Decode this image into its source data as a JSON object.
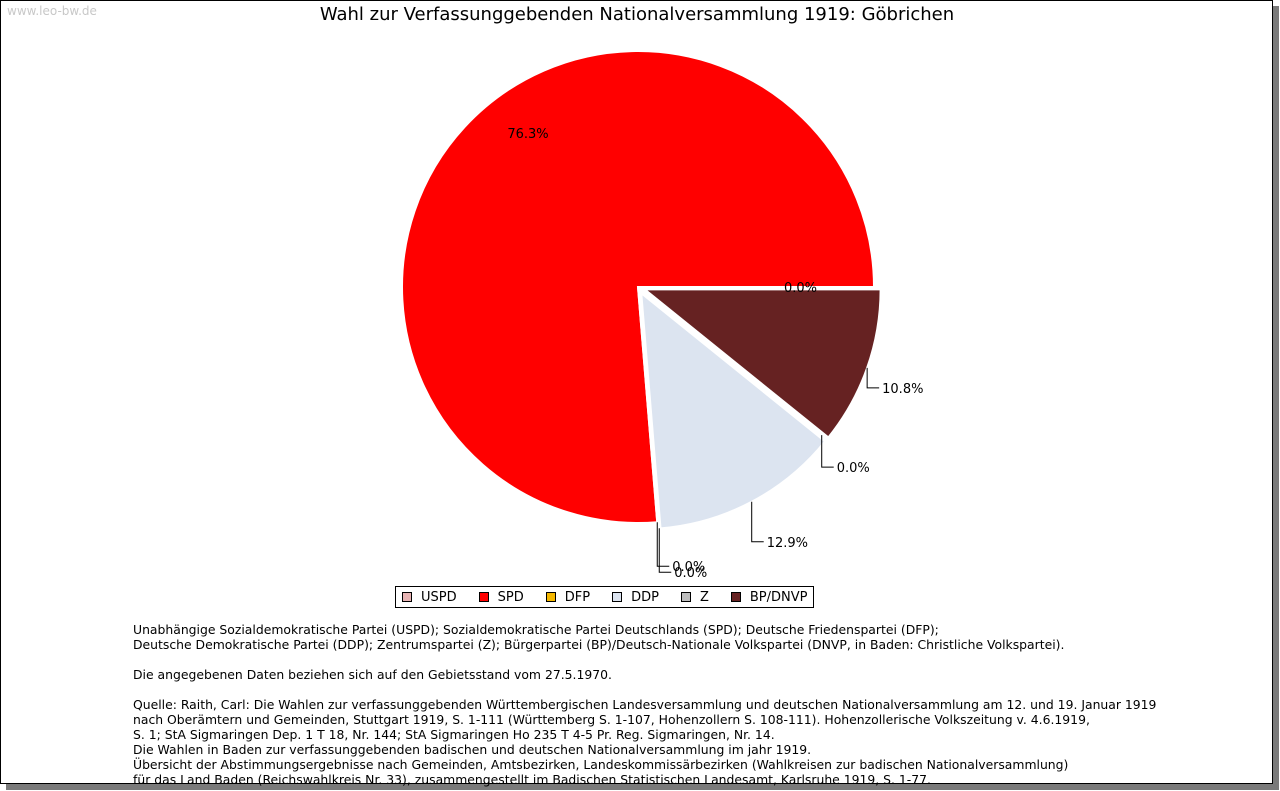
{
  "watermark": "www.leo-bw.de",
  "chart_data": {
    "type": "pie",
    "title": "Wahl zur Verfassunggebenden Nationalversammlung 1919: Göbrichen",
    "categories": [
      "USPD",
      "SPD",
      "DFP",
      "DDP",
      "Z",
      "BP/DNVP"
    ],
    "values": [
      0.0,
      76.3,
      0.0,
      12.9,
      0.0,
      10.8
    ],
    "value_labels": [
      "0.0%",
      "76.3%",
      "0.0%",
      "12.9%",
      "0.0%",
      "10.8%"
    ],
    "colors": [
      "#e8b4b4",
      "#ff0000",
      "#f5b800",
      "#dce4f0",
      "#bdbdbd",
      "#662222"
    ],
    "legend_position": "bottom"
  },
  "notes": {
    "parties": [
      "Unabhängige Sozialdemokratische Partei (USPD); Sozialdemokratische Partei Deutschlands (SPD); Deutsche Friedenspartei (DFP);",
      "Deutsche Demokratische Partei (DDP); Zentrumspartei (Z); Bürgerpartei (BP)/Deutsch-Nationale Volkspartei (DNVP, in Baden: Christliche Volkspartei)."
    ],
    "territory": "Die angegebenen Daten beziehen sich auf den Gebietsstand vom 27.5.1970.",
    "source": [
      "Quelle: Raith, Carl: Die Wahlen zur verfassunggebenden Württembergischen Landesversammlung und deutschen Nationalversammlung am 12. und 19. Januar 1919",
      "nach Oberämtern und Gemeinden, Stuttgart 1919, S. 1-111 (Württemberg S. 1-107, Hohenzollern S. 108-111). Hohenzollerische Volkszeitung v. 4.6.1919,",
      "S. 1; StA Sigmaringen Dep. 1 T 18, Nr. 144; StA Sigmaringen Ho 235 T 4-5 Pr. Reg. Sigmaringen, Nr. 14.",
      "Die Wahlen in Baden zur verfassunggebenden badischen und deutschen Nationalversammlung im jahr 1919.",
      "Übersicht der Abstimmungsergebnisse nach Gemeinden, Amtsbezirken, Landeskommissärbezirken (Wahlkreisen zur badischen Nationalversammlung)",
      "für das Land Baden (Reichswahlkreis Nr. 33), zusammengestellt im Badischen Statistischen Landesamt, Karlsruhe 1919, S. 1-77."
    ]
  }
}
